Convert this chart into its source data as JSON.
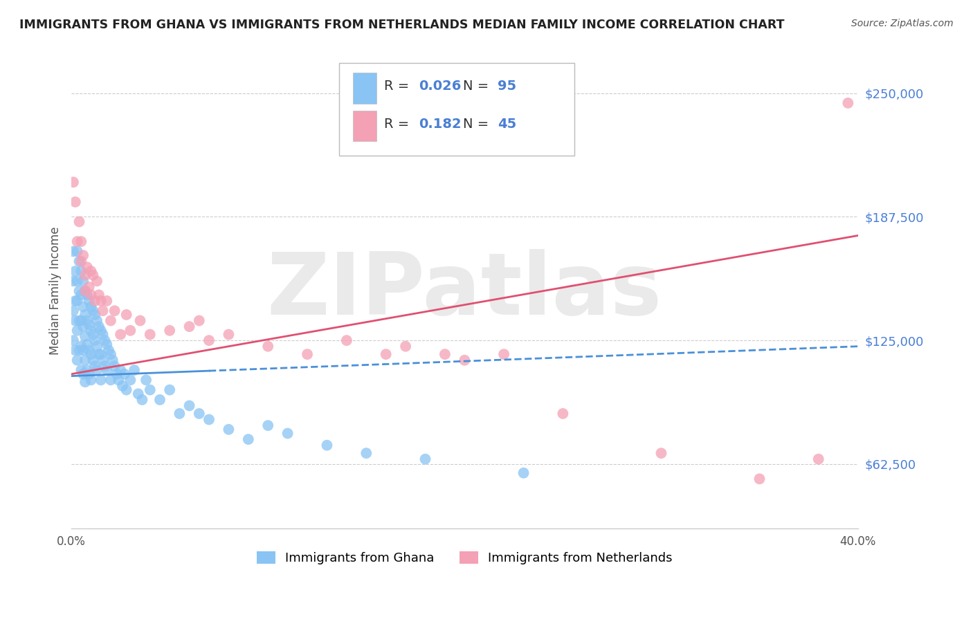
{
  "title": "IMMIGRANTS FROM GHANA VS IMMIGRANTS FROM NETHERLANDS MEDIAN FAMILY INCOME CORRELATION CHART",
  "source": "Source: ZipAtlas.com",
  "ylabel": "Median Family Income",
  "xlim": [
    0.0,
    0.4
  ],
  "ylim": [
    30000,
    270000
  ],
  "yticks": [
    62500,
    125000,
    187500,
    250000
  ],
  "ytick_labels": [
    "$62,500",
    "$125,000",
    "$187,500",
    "$250,000"
  ],
  "xtick_positions": [
    0.0,
    0.05,
    0.1,
    0.15,
    0.2,
    0.25,
    0.3,
    0.35,
    0.4
  ],
  "xtick_labels": [
    "0.0%",
    "",
    "",
    "",
    "",
    "",
    "",
    "",
    "40.0%"
  ],
  "ghana_color": "#89c4f4",
  "netherlands_color": "#f4a0b5",
  "ghana_R": 0.026,
  "ghana_N": 95,
  "netherlands_R": 0.182,
  "netherlands_N": 45,
  "ghana_line_color": "#4a90d9",
  "netherlands_line_color": "#e05070",
  "watermark": "ZIPatlas",
  "legend_ghana": "Immigrants from Ghana",
  "legend_netherlands": "Immigrants from Netherlands",
  "ghana_line_solid_end": 0.07,
  "ghana_line_x0": 0.0,
  "ghana_line_x1": 0.4,
  "ghana_line_y0": 107000,
  "ghana_line_y1": 122000,
  "neth_line_x0": 0.0,
  "neth_line_x1": 0.4,
  "neth_line_y0": 108000,
  "neth_line_y1": 178000,
  "ghana_scatter_x": [
    0.001,
    0.001,
    0.001,
    0.001,
    0.002,
    0.002,
    0.002,
    0.002,
    0.003,
    0.003,
    0.003,
    0.003,
    0.003,
    0.004,
    0.004,
    0.004,
    0.004,
    0.005,
    0.005,
    0.005,
    0.005,
    0.005,
    0.006,
    0.006,
    0.006,
    0.006,
    0.006,
    0.007,
    0.007,
    0.007,
    0.007,
    0.007,
    0.008,
    0.008,
    0.008,
    0.008,
    0.009,
    0.009,
    0.009,
    0.009,
    0.01,
    0.01,
    0.01,
    0.01,
    0.011,
    0.011,
    0.011,
    0.012,
    0.012,
    0.012,
    0.013,
    0.013,
    0.013,
    0.014,
    0.014,
    0.015,
    0.015,
    0.015,
    0.016,
    0.016,
    0.017,
    0.017,
    0.018,
    0.018,
    0.019,
    0.02,
    0.02,
    0.021,
    0.022,
    0.023,
    0.024,
    0.025,
    0.026,
    0.027,
    0.028,
    0.03,
    0.032,
    0.034,
    0.036,
    0.038,
    0.04,
    0.045,
    0.05,
    0.055,
    0.06,
    0.065,
    0.07,
    0.08,
    0.09,
    0.1,
    0.11,
    0.13,
    0.15,
    0.18,
    0.23
  ],
  "ghana_scatter_y": [
    170000,
    155000,
    140000,
    125000,
    160000,
    145000,
    135000,
    120000,
    170000,
    155000,
    145000,
    130000,
    115000,
    165000,
    150000,
    135000,
    120000,
    160000,
    148000,
    135000,
    122000,
    110000,
    155000,
    142000,
    132000,
    120000,
    108000,
    150000,
    138000,
    127000,
    115000,
    104000,
    148000,
    135000,
    123000,
    110000,
    145000,
    133000,
    120000,
    108000,
    142000,
    130000,
    118000,
    105000,
    140000,
    128000,
    115000,
    138000,
    125000,
    112000,
    135000,
    122000,
    110000,
    132000,
    118000,
    130000,
    118000,
    105000,
    128000,
    115000,
    125000,
    112000,
    123000,
    110000,
    120000,
    118000,
    105000,
    115000,
    112000,
    108000,
    105000,
    110000,
    102000,
    108000,
    100000,
    105000,
    110000,
    98000,
    95000,
    105000,
    100000,
    95000,
    100000,
    88000,
    92000,
    88000,
    85000,
    80000,
    75000,
    82000,
    78000,
    72000,
    68000,
    65000,
    58000
  ],
  "netherlands_scatter_x": [
    0.001,
    0.002,
    0.003,
    0.004,
    0.005,
    0.005,
    0.006,
    0.007,
    0.007,
    0.008,
    0.009,
    0.01,
    0.01,
    0.011,
    0.012,
    0.013,
    0.014,
    0.015,
    0.016,
    0.018,
    0.02,
    0.022,
    0.025,
    0.028,
    0.03,
    0.035,
    0.04,
    0.05,
    0.06,
    0.065,
    0.07,
    0.08,
    0.1,
    0.12,
    0.14,
    0.16,
    0.17,
    0.19,
    0.2,
    0.22,
    0.25,
    0.3,
    0.35,
    0.38,
    0.395
  ],
  "netherlands_scatter_y": [
    205000,
    195000,
    175000,
    185000,
    165000,
    175000,
    168000,
    158000,
    150000,
    162000,
    152000,
    160000,
    148000,
    158000,
    145000,
    155000,
    148000,
    145000,
    140000,
    145000,
    135000,
    140000,
    128000,
    138000,
    130000,
    135000,
    128000,
    130000,
    132000,
    135000,
    125000,
    128000,
    122000,
    118000,
    125000,
    118000,
    122000,
    118000,
    115000,
    118000,
    88000,
    68000,
    55000,
    65000,
    245000
  ]
}
